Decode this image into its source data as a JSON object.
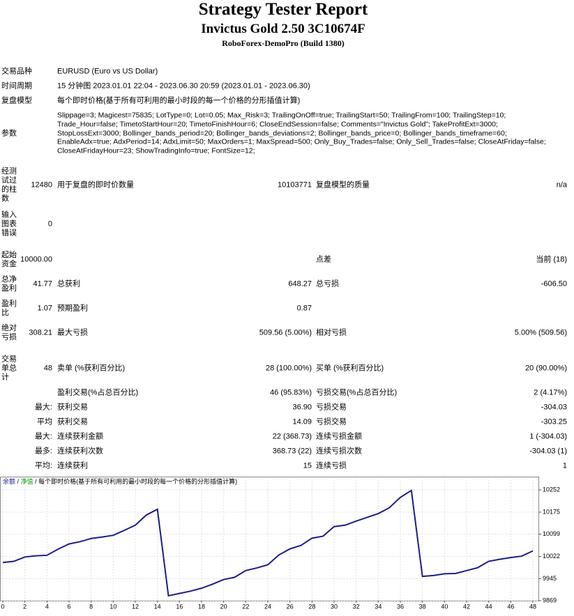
{
  "header": {
    "title": "Strategy Tester Report",
    "subtitle": "Invictus Gold 2.50 3C10674F",
    "server": "RoboForex-DemoPro (Build 1380)"
  },
  "info": [
    {
      "label": "交易品种",
      "value": "EURUSD (Euro vs US Dollar)"
    },
    {
      "label": "时间周期",
      "value": "15 分钟图 2023.01.01 22:04 - 2023.06.30 20:59 (2023.01.01 - 2023.06.30)"
    },
    {
      "label": "复盘模型",
      "value": "每个即时价格(基于所有可利用的最小时段的每一个价格的分形插值计算)"
    }
  ],
  "parameters": {
    "label": "参数",
    "lines": [
      "Slippage=3; Magicest=75835; LotType=0; Lot=0.05; Max_Risk=3; TrailingOnOff=true; TrailingStart=50; TrailingFrom=100; TrailingStep=10;",
      "Trade_Hour=false; TimetoStartHour=20; TimetoFinishHour=6; CloseEndSession=false; Comments=\"Invictus Gold\"; TakeProfitExt=3000;",
      "StopLossExt=3000; Bollinger_bands_period=20; Bollinger_bands_deviations=2; Bollinger_bands_price=0; Bollinger_bands_timeframe=60;",
      "EnableAdx=true; AdxPeriod=14; AdxLimit=50; MaxOrders=1; MaxSpread=500; Only_Buy_Trades=false; Only_Sell_Trades=false; CloseAtFriday=false;",
      "CloseAtFridayHour=23; ShowTradingInfo=true; FontSize=12;"
    ]
  },
  "stats": [
    {
      "head": "经测试过的柱数",
      "num": "12480",
      "k1": "用于复盘的即时价数量",
      "v1": "10103771",
      "k2": "复盘模型的质量",
      "v2": "n/a"
    },
    {
      "head": "输入图表错误",
      "num": "0"
    },
    {
      "head": "起始资金",
      "num": "10000.00",
      "k2": "点差",
      "v2": "当前 (18)"
    },
    {
      "head": "总净盈利",
      "num": "41.77",
      "k1": "总获利",
      "v1": "648.27",
      "k2": "总亏损",
      "v2": "-606.50"
    },
    {
      "head": "盈利比",
      "num": "1.07",
      "k1": "预期盈利",
      "v1": "0.87"
    },
    {
      "head": "绝对亏损",
      "num": "308.21",
      "k1": "最大亏损",
      "v1": "509.56 (5.00%)",
      "k2": "相对亏损",
      "v2": "5.00% (509.56)"
    },
    {
      "head": "交易单总计",
      "num": "48",
      "k1": "卖单 (%获利百分比)",
      "v1": "28 (100.00%)",
      "k2": "买单 (%获利百分比)",
      "v2": "20 (90.00%)"
    },
    {
      "k1": "盈利交易(%占总百分比)",
      "v1": "46 (95.83%)",
      "k2": "亏损交易(%占总百分比)",
      "v2": "2 (4.17%)"
    },
    {
      "num": "最大:",
      "k1": "获利交易",
      "v1": "36.90",
      "k2": "亏损交易",
      "v2": "-304.03"
    },
    {
      "num": "平均",
      "k1": "获利交易",
      "v1": "14.09",
      "k2": "亏损交易",
      "v2": "-303.25"
    },
    {
      "num": "最大:",
      "k1": "连续获利金额",
      "v1": "22 (368.73)",
      "k2": "连续亏损金额",
      "v2": "1 (-304.03)"
    },
    {
      "num": "最多:",
      "k1": "连续获利次数",
      "v1": "368.73 (22)",
      "k2": "连续亏损次数",
      "v2": "-304.03 (1)"
    },
    {
      "num": "平均:",
      "k1": "连续获利",
      "v1": "15",
      "k2": "连续亏损",
      "v2": "1"
    }
  ],
  "chart_data": {
    "type": "line",
    "series": [
      {
        "name": "余额",
        "color": "#1c1c8c",
        "values": [
          10001,
          10005,
          10020,
          10024,
          10026,
          10047,
          10065,
          10073,
          10084,
          10089,
          10095,
          10112,
          10130,
          10165,
          10185,
          9886,
          9894,
          9902,
          9912,
          9926,
          9942,
          9950,
          9973,
          9982,
          9993,
          10027,
          10048,
          10060,
          10085,
          10092,
          10125,
          10130,
          10144,
          10157,
          10170,
          10190,
          10226,
          10250,
          9953,
          9956,
          9962,
          9963,
          9973,
          9983,
          10005,
          10012,
          10018,
          10023,
          10041
        ]
      }
    ],
    "separator": "/",
    "equity_name": "净值",
    "equity_color": "#00a000",
    "model_note": "每个即时价格(基于所有可利用的最小时段的每一个价格的分形插值计算)",
    "x": [
      0,
      1,
      2,
      3,
      4,
      5,
      6,
      7,
      8,
      9,
      10,
      11,
      12,
      13,
      14,
      15,
      16,
      17,
      18,
      19,
      20,
      21,
      22,
      23,
      24,
      25,
      26,
      27,
      28,
      29,
      30,
      31,
      32,
      33,
      34,
      35,
      36,
      37,
      38,
      39,
      40,
      41,
      42,
      43,
      44,
      45,
      46,
      47,
      48
    ],
    "xlim": [
      0,
      48
    ],
    "xticks": [
      0,
      2,
      4,
      6,
      8,
      10,
      12,
      14,
      16,
      18,
      20,
      22,
      24,
      26,
      28,
      30,
      32,
      34,
      36,
      38,
      40,
      42,
      44,
      46,
      48
    ],
    "ylim": [
      9869,
      10252
    ],
    "yticks": [
      9869,
      9945,
      10022,
      10099,
      10175,
      10252
    ],
    "grid": true
  }
}
